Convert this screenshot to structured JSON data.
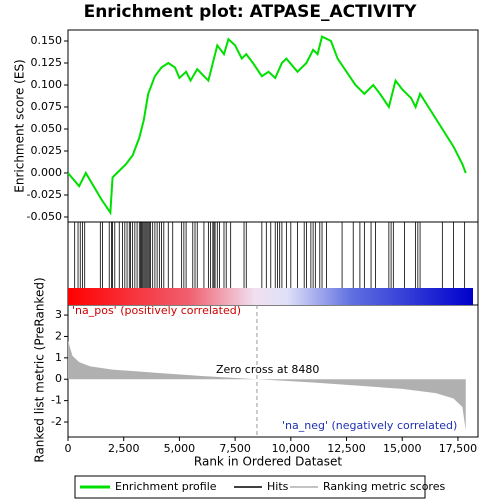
{
  "chart_data": [
    {
      "type": "line",
      "title": "Enrichment plot: ATPASE_ACTIVITY",
      "ylabel": "Enrichment score (ES)",
      "xlim": [
        0,
        18400
      ],
      "ylim": [
        -0.0557,
        0.1625
      ],
      "yticks": [
        {
          "value": 0.15,
          "label": "0.150"
        },
        {
          "value": 0.125,
          "label": "0.125"
        },
        {
          "value": 0.1,
          "label": "0.100"
        },
        {
          "value": 0.075,
          "label": "0.075"
        },
        {
          "value": 0.05,
          "label": "0.050"
        },
        {
          "value": 0.025,
          "label": "0.025"
        },
        {
          "value": 0,
          "label": "0.000"
        },
        {
          "value": -0.025,
          "label": "-0.025"
        },
        {
          "value": -0.05,
          "label": "-0.050"
        }
      ],
      "x": [
        0,
        500,
        700,
        800,
        1500,
        1900,
        2000,
        2200,
        2600,
        2900,
        3200,
        3400,
        3600,
        3900,
        4200,
        4500,
        4800,
        5000,
        5300,
        5500,
        5800,
        6100,
        6300,
        6500,
        6700,
        7000,
        7200,
        7500,
        7800,
        8000,
        8300,
        8700,
        9000,
        9300,
        9600,
        9800,
        10300,
        10700,
        11000,
        11200,
        11400,
        11800,
        12100,
        12500,
        12900,
        13300,
        13700,
        14000,
        14400,
        14700,
        15000,
        15400,
        15600,
        15800,
        16300,
        16800,
        17300,
        17700,
        17850
      ],
      "series": [
        {
          "name": "Enrichment profile",
          "color": "#00e000",
          "values": [
            0,
            -0.015,
            -0.005,
            0.0,
            -0.03,
            -0.045,
            -0.005,
            0.0,
            0.01,
            0.02,
            0.04,
            0.06,
            0.09,
            0.11,
            0.12,
            0.125,
            0.12,
            0.108,
            0.115,
            0.105,
            0.118,
            0.11,
            0.105,
            0.125,
            0.145,
            0.135,
            0.152,
            0.145,
            0.13,
            0.135,
            0.125,
            0.11,
            0.115,
            0.108,
            0.125,
            0.13,
            0.115,
            0.125,
            0.14,
            0.135,
            0.155,
            0.15,
            0.13,
            0.115,
            0.1,
            0.09,
            0.1,
            0.09,
            0.075,
            0.105,
            0.095,
            0.085,
            0.075,
            0.09,
            0.07,
            0.05,
            0.03,
            0.01,
            0.0
          ]
        }
      ]
    },
    {
      "type": "hits",
      "name": "Hits",
      "color": "#000000",
      "xlim": [
        0,
        18400
      ],
      "x": [
        300,
        450,
        550,
        650,
        750,
        1450,
        1550,
        1850,
        1950,
        2000,
        2100,
        2300,
        2450,
        2550,
        2650,
        2750,
        2800,
        2900,
        3000,
        3100,
        3200,
        3250,
        3300,
        3350,
        3400,
        3450,
        3500,
        3550,
        3600,
        3650,
        3700,
        3800,
        3900,
        4000,
        4100,
        4200,
        4300,
        4500,
        4700,
        5100,
        5200,
        5300,
        5600,
        5700,
        5800,
        6100,
        6300,
        6400,
        6500,
        6550,
        6600,
        6700,
        6800,
        7000,
        7100,
        7300,
        7900,
        8000,
        8700,
        8900,
        9100,
        9300,
        9400,
        9500,
        9600,
        9800,
        10000,
        10300,
        10600,
        10700,
        10900,
        11000,
        11100,
        11300,
        11400,
        11600,
        12300,
        12800,
        13100,
        13300,
        13600,
        13800,
        14400,
        14500,
        14600,
        15100,
        15600,
        15700,
        15800,
        16800,
        17300,
        17800
      ]
    },
    {
      "type": "area",
      "xlabel": "Rank in Ordered Dataset",
      "ylabel": "Ranked list metric (PreRanked)",
      "xlim": [
        0,
        18400
      ],
      "xticks": [
        0,
        {
          "value": 2500,
          "label": "2,500"
        },
        {
          "value": 5000,
          "label": "5,000"
        },
        {
          "value": 7500,
          "label": "7,500"
        },
        {
          "value": 10000,
          "label": "10,000"
        },
        {
          "value": 12500,
          "label": "12,500"
        },
        {
          "value": 15000,
          "label": "15,000"
        },
        {
          "value": 17500,
          "label": "17,500"
        }
      ],
      "ylim": [
        -2.7,
        3.47
      ],
      "yticks": [
        3,
        2,
        1,
        0,
        -1,
        -2
      ],
      "x": [
        0,
        200,
        500,
        1000,
        2000,
        4000,
        6000,
        8480,
        11000,
        13000,
        15000,
        16500,
        17300,
        17700,
        17850
      ],
      "series": [
        {
          "name": "Ranking metric scores",
          "color": "#b0b0b0",
          "values": [
            1.8,
            1.1,
            0.8,
            0.6,
            0.45,
            0.3,
            0.15,
            0,
            -0.15,
            -0.3,
            -0.45,
            -0.65,
            -0.9,
            -1.3,
            -2.4
          ]
        }
      ],
      "zero_cross": 8480,
      "zero_cross_text": "Zero cross at 8480",
      "pos_text": "'na_pos' (positively correlated)",
      "neg_text": "'na_neg' (negatively correlated)"
    }
  ]
}
